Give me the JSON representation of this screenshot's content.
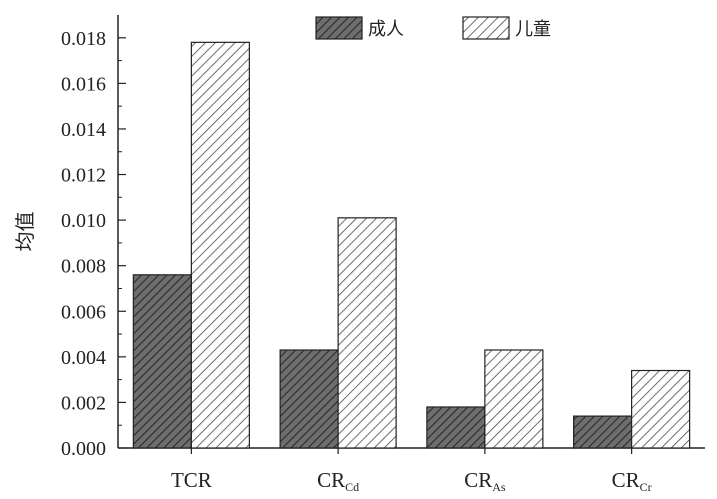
{
  "chart_data": {
    "type": "bar",
    "categories": [
      {
        "main": "TCR",
        "sub": ""
      },
      {
        "main": "CR",
        "sub": "Cd"
      },
      {
        "main": "CR",
        "sub": "As"
      },
      {
        "main": "CR",
        "sub": "Cr"
      }
    ],
    "series": [
      {
        "name": "成人",
        "values": [
          0.0076,
          0.0043,
          0.0018,
          0.0014
        ],
        "color": "#6e6e6e",
        "pattern": "dense-diagonal-hatch-dark"
      },
      {
        "name": "儿童",
        "values": [
          0.0178,
          0.0101,
          0.0043,
          0.0034
        ],
        "color": "#ffffff",
        "pattern": "diagonal-hatch-light"
      }
    ],
    "title": "",
    "xlabel": "",
    "ylabel": "均值",
    "ylim": [
      0,
      0.019
    ],
    "yticks": [
      "0.000",
      "0.002",
      "0.004",
      "0.006",
      "0.008",
      "0.010",
      "0.012",
      "0.014",
      "0.016",
      "0.018"
    ],
    "grid": false,
    "legend_position": "top-center"
  }
}
